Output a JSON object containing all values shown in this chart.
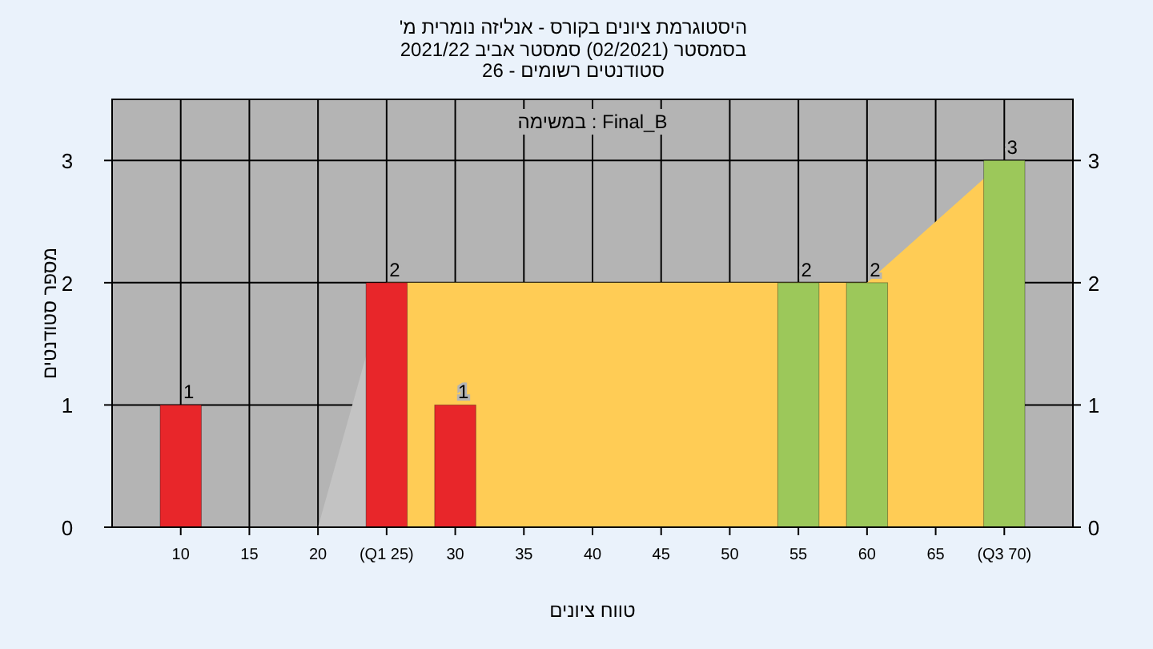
{
  "chart_data": {
    "type": "bar",
    "title": "היסטוגרמת ציונים בקורס - אנליזה נומרית מ'",
    "subtitle": "בסמסטר (02/2021) סמסטר אביב 2021/22\nסטודנטים רשומים - 26",
    "xlabel": "טווח ציונים",
    "ylabel": "מספר סטודנטים",
    "annotations": [
      "במשימה : Final_B"
    ],
    "series": [
      {
        "type": "area",
        "x": [
          10,
          20,
          25
        ],
        "values": [
          0,
          0,
          2
        ],
        "color": "#c3c3c3"
      },
      {
        "type": "area",
        "x": [
          25,
          60,
          70
        ],
        "values": [
          2,
          2,
          3
        ],
        "color": "#ffcc55"
      },
      {
        "type": "bar",
        "x": [
          10,
          25,
          30,
          55,
          60,
          70
        ],
        "values": [
          1,
          2,
          1,
          2,
          2,
          3
        ],
        "colors": [
          "#e8262a",
          "#e8262a",
          "#e8262a",
          "#9cc85a",
          "#9cc85a",
          "#9cc85a"
        ],
        "value_labels": [
          "1",
          "2",
          "1",
          "2",
          "2",
          "3"
        ]
      }
    ],
    "xlim": [
      5,
      75
    ],
    "xticks": [
      10,
      15,
      20,
      {
        "value": 25,
        "label": "(Q1 25)"
      },
      30,
      35,
      40,
      45,
      50,
      55,
      60,
      65,
      {
        "value": 70,
        "label": "(Q3 70)"
      }
    ],
    "ylim": [
      0,
      3.5
    ],
    "yticks": [
      0,
      1,
      2,
      3
    ],
    "y2lim": [
      0,
      3.5
    ],
    "y2ticks": [
      0,
      1,
      2,
      3
    ],
    "grid": true
  }
}
